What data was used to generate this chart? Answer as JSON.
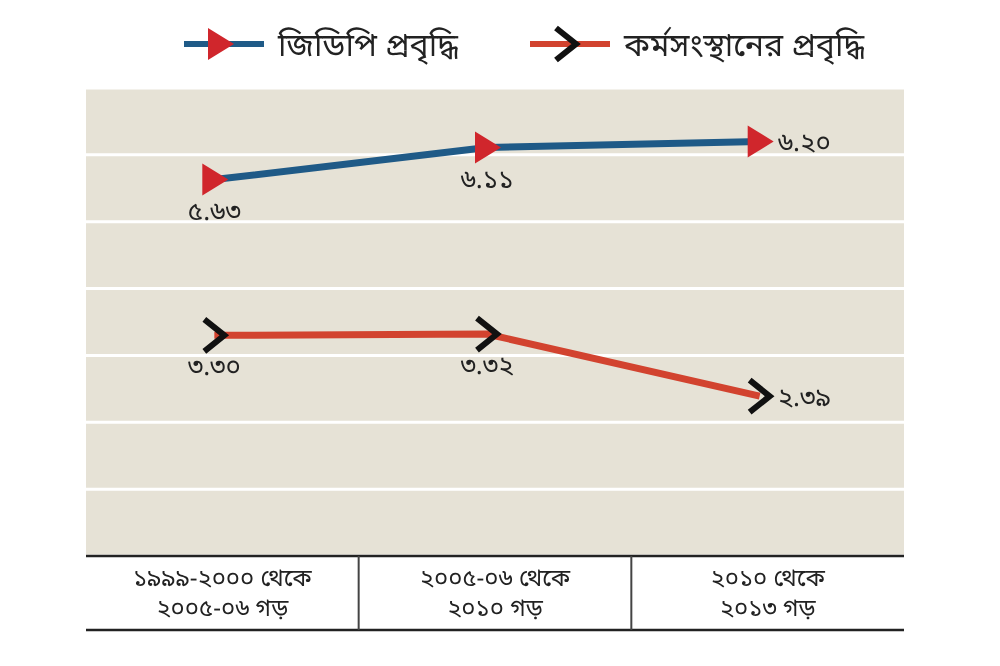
{
  "chart_data": {
    "type": "line",
    "categories": [
      "১৯৯৯-২০০০ থেকে\n২০০৫-০৬ গড়",
      "২০০৫-০৬ থেকে\n২০১০ গড়",
      "২০১০ থেকে\n২০১৩ গড়"
    ],
    "series": [
      {
        "name": "জিডিপি প্রবৃদ্ধি",
        "color": "#1f5a87",
        "marker": "triangle",
        "values": [
          5.63,
          6.11,
          6.2
        ],
        "value_labels": [
          "৫.৬৩",
          "৬.১১",
          "৬.২০"
        ]
      },
      {
        "name": "কর্মসংস্থানের প্রবৃদ্ধি",
        "color": "#d2432f",
        "marker": "cross",
        "values": [
          3.3,
          3.32,
          2.39
        ],
        "value_labels": [
          "৩.৩০",
          "৩.৩২",
          "২.৩৯"
        ]
      }
    ],
    "ylim": [
      0,
      7
    ],
    "yticks": [
      {
        "value": 0,
        "label": null
      },
      {
        "value": 1,
        "label": null
      },
      {
        "value": 2,
        "label": null
      },
      {
        "value": 3,
        "label": null
      },
      {
        "value": 4,
        "label": null
      },
      {
        "value": 5,
        "label": null
      },
      {
        "value": 6,
        "label": null
      },
      {
        "value": 7,
        "label": null
      }
    ],
    "tick_labels": "x",
    "grid": "y",
    "legend": "top",
    "line_style": "solid"
  }
}
